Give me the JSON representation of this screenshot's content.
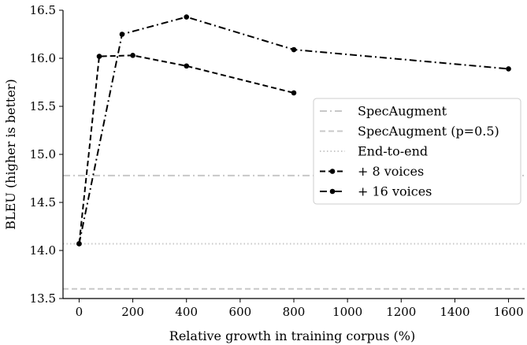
{
  "chart_data": {
    "type": "line",
    "title": "",
    "xlabel": "Relative growth in training corpus (%)",
    "ylabel": "BLEU (higher is better)",
    "xlim": [
      -60,
      1660
    ],
    "ylim": [
      13.5,
      16.5
    ],
    "xticks": [
      0,
      200,
      400,
      600,
      800,
      1000,
      1200,
      1400,
      1600
    ],
    "xtick_labels": [
      "0",
      "200",
      "400",
      "600",
      "800",
      "1000",
      "1200",
      "1400",
      "1600"
    ],
    "yticks": [
      13.5,
      14.0,
      14.5,
      15.0,
      15.5,
      16.0,
      16.5
    ],
    "ytick_labels": [
      "13.5",
      "14.0",
      "14.5",
      "15.0",
      "15.5",
      "16.0",
      "16.5"
    ],
    "grid": false,
    "legend_position": "center-right",
    "reference_lines": [
      {
        "name": "SpecAugment",
        "y": 14.78,
        "style": "dashdot",
        "color": "#c8c8c8"
      },
      {
        "name": "SpecAugment (p=0.5)",
        "y": 13.6,
        "style": "dashed",
        "color": "#c8c8c8"
      },
      {
        "name": "End-to-end",
        "y": 14.07,
        "style": "dotted",
        "color": "#c8c8c8"
      }
    ],
    "series": [
      {
        "name": "+ 8 voices",
        "style": "dashed",
        "color": "#000000",
        "x": [
          0,
          75,
          200,
          400,
          800
        ],
        "y": [
          14.07,
          16.02,
          16.03,
          15.92,
          15.64
        ]
      },
      {
        "name": "+ 16 voices",
        "style": "dashdot",
        "color": "#000000",
        "x": [
          0,
          160,
          400,
          800,
          1600
        ],
        "y": [
          14.07,
          16.25,
          16.43,
          16.09,
          15.89
        ]
      }
    ],
    "legend": [
      "SpecAugment",
      "SpecAugment (p=0.5)",
      "End-to-end",
      "+ 8 voices",
      "+ 16 voices"
    ]
  }
}
